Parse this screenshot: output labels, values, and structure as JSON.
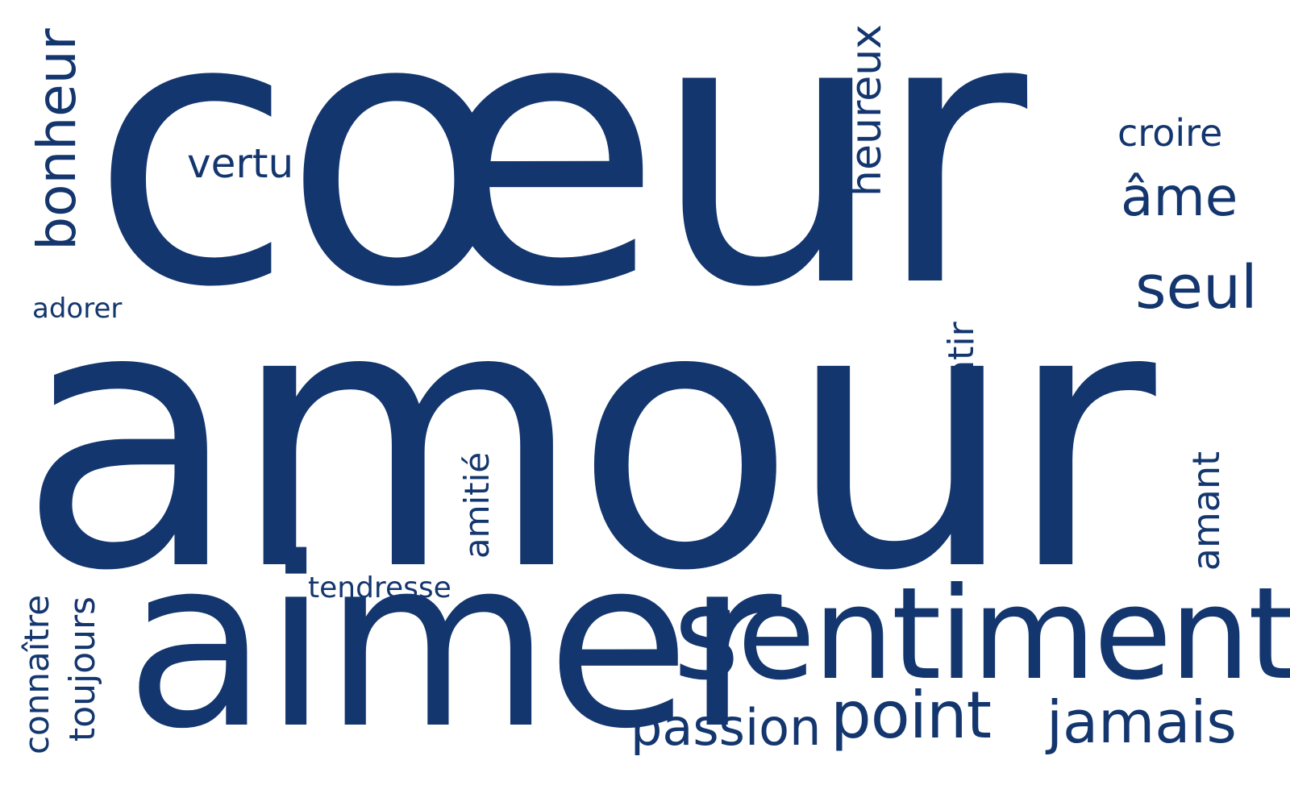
{
  "color": "#14366e",
  "background": "#ffffff",
  "words": {
    "coeur": "cœur",
    "amour": "amour",
    "aimer": "aimer",
    "sentiment": "sentiment",
    "point": "point",
    "jamais": "jamais",
    "passion": "passion",
    "bonheur": "bonheur",
    "heureux": "heureux",
    "vertu": "vertu",
    "croire": "croire",
    "ame": "âme",
    "seul": "seul",
    "adorer": "adorer",
    "sentir": "sentir",
    "amitie": "amitié",
    "amant": "amant",
    "tendresse": "tendresse",
    "connaitre": "connaître",
    "toujours": "toujours"
  }
}
